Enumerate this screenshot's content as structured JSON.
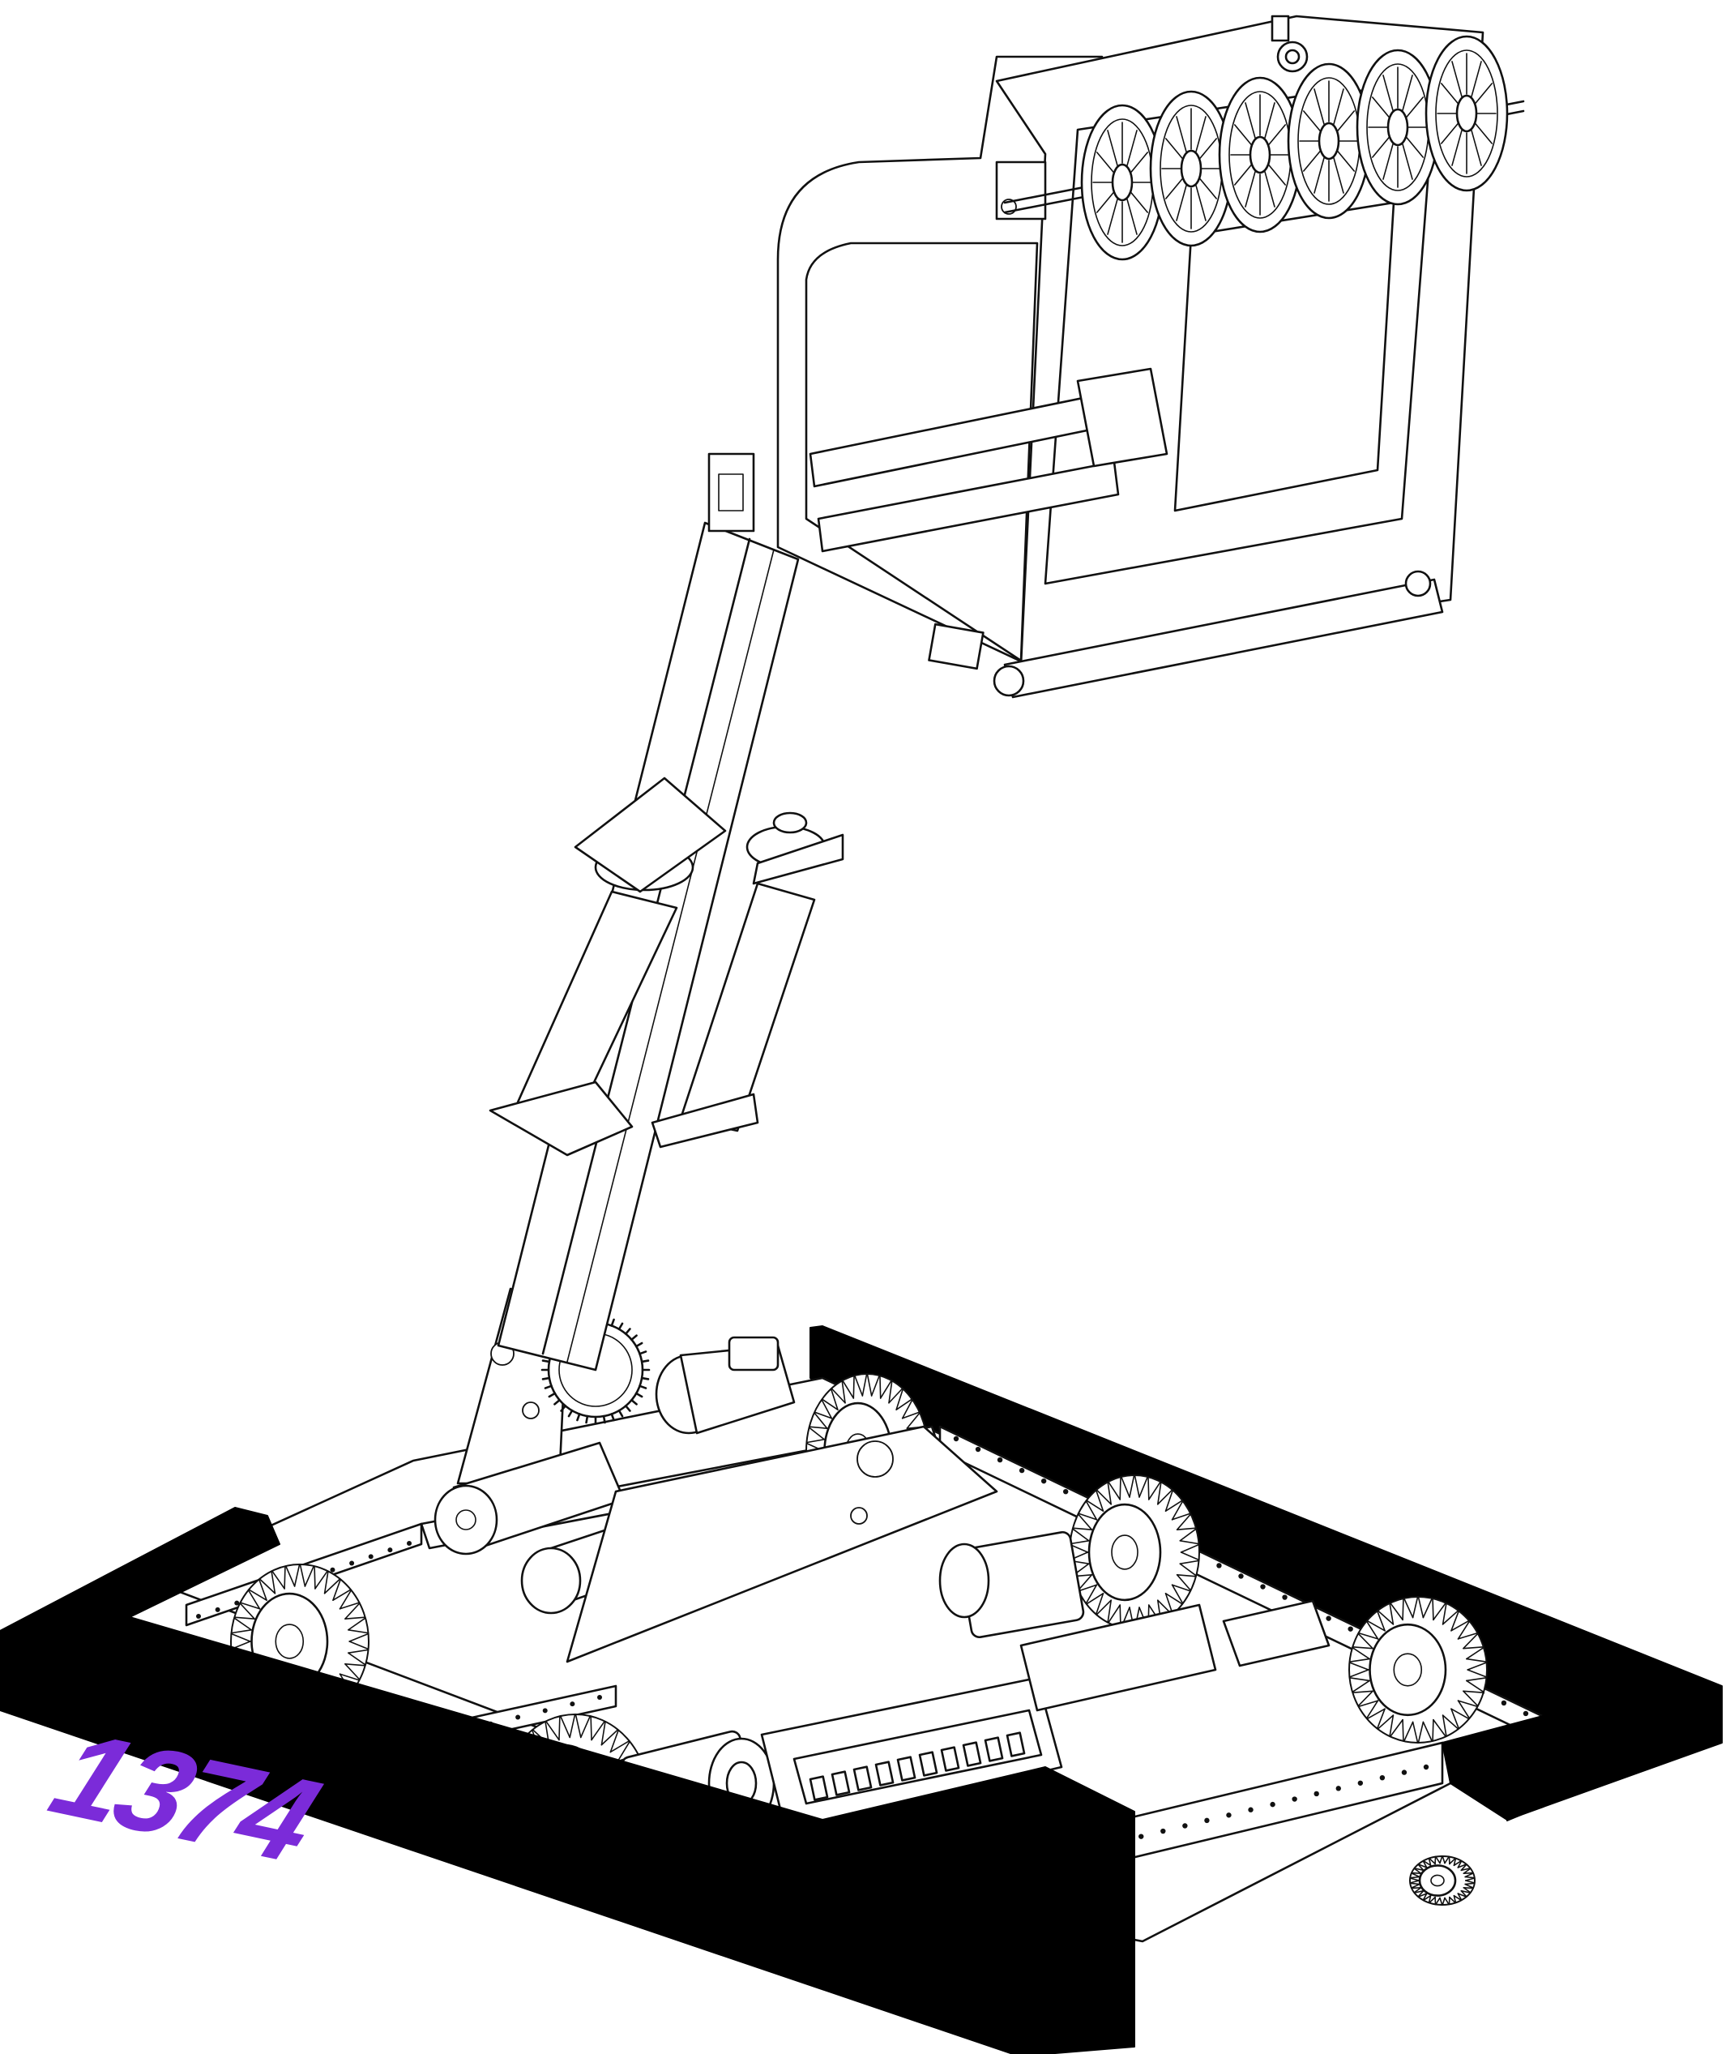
{
  "figure": {
    "team_number": "1374",
    "bumper_color": "#000000",
    "number_color": "#7b2bd9",
    "line_color": "#111111",
    "background": "#ffffff"
  },
  "icons": {
    "robot": "robot-line-drawing",
    "intake": "roller-intake-icon",
    "arm": "telescoping-arm-icon",
    "wheel": "pneumatic-wheel-icon"
  }
}
